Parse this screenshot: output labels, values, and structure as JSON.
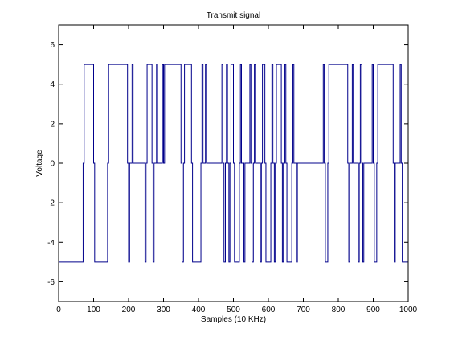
{
  "chart_data": {
    "type": "line",
    "title": "Transmit signal",
    "xlabel": "Samples (10 KHz)",
    "ylabel": "Voltage",
    "xlim": [
      0,
      1000
    ],
    "ylim": [
      -7,
      7
    ],
    "xticks": [
      0,
      100,
      200,
      300,
      400,
      500,
      600,
      700,
      800,
      900,
      1000
    ],
    "yticks": [
      -6,
      -4,
      -2,
      0,
      2,
      4,
      6
    ],
    "grid": false,
    "line_color": "#00008b",
    "series": [
      {
        "x": [
          0,
          70,
          70,
          73,
          73,
          100,
          100,
          103,
          103,
          140,
          140,
          143,
          143,
          197,
          197,
          200,
          200,
          203,
          203,
          210,
          210,
          213,
          213,
          247,
          247,
          250,
          250,
          253,
          253,
          267,
          267,
          270,
          270,
          273,
          273,
          280,
          280,
          283,
          283,
          297,
          297,
          300,
          300,
          303,
          303,
          350,
          350,
          353,
          353,
          357,
          357,
          360,
          360,
          380,
          380,
          383,
          383,
          407,
          407,
          410,
          410,
          413,
          413,
          420,
          420,
          423,
          423,
          467,
          467,
          470,
          470,
          473,
          473,
          477,
          477,
          480,
          480,
          483,
          483,
          487,
          487,
          490,
          490,
          493,
          493,
          500,
          500,
          503,
          503,
          517,
          517,
          520,
          520,
          523,
          523,
          530,
          530,
          533,
          533,
          547,
          547,
          550,
          550,
          553,
          553,
          557,
          557,
          560,
          560,
          563,
          563,
          577,
          577,
          580,
          580,
          583,
          583,
          590,
          590,
          593,
          593,
          607,
          607,
          610,
          610,
          613,
          613,
          617,
          617,
          620,
          620,
          623,
          623,
          637,
          637,
          640,
          640,
          643,
          643,
          647,
          647,
          650,
          650,
          653,
          653,
          667,
          667,
          670,
          670,
          673,
          673,
          680,
          680,
          683,
          683,
          757,
          757,
          760,
          760,
          763,
          763,
          770,
          770,
          773,
          773,
          827,
          827,
          830,
          830,
          833,
          833,
          840,
          840,
          843,
          843,
          857,
          857,
          860,
          860,
          863,
          863,
          867,
          867,
          870,
          870,
          873,
          873,
          897,
          897,
          900,
          900,
          903,
          903,
          910,
          910,
          913,
          913,
          957,
          957,
          960,
          960,
          963,
          963,
          977,
          977,
          980,
          980,
          983,
          983,
          1000
        ],
        "y": [
          -5,
          -5,
          0,
          0,
          5,
          5,
          0,
          0,
          -5,
          -5,
          0,
          0,
          5,
          5,
          0,
          0,
          -5,
          -5,
          0,
          0,
          5,
          5,
          0,
          0,
          -5,
          -5,
          0,
          0,
          5,
          5,
          0,
          0,
          -5,
          -5,
          0,
          0,
          5,
          5,
          0,
          0,
          5,
          5,
          0,
          0,
          5,
          5,
          0,
          0,
          -5,
          -5,
          0,
          0,
          5,
          5,
          0,
          0,
          -5,
          -5,
          0,
          0,
          5,
          5,
          0,
          0,
          5,
          5,
          0,
          0,
          5,
          5,
          0,
          0,
          -5,
          -5,
          0,
          0,
          5,
          5,
          0,
          0,
          -5,
          -5,
          0,
          0,
          5,
          5,
          0,
          0,
          -5,
          -5,
          0,
          0,
          5,
          5,
          0,
          0,
          -5,
          -5,
          0,
          0,
          5,
          5,
          0,
          0,
          -5,
          -5,
          0,
          0,
          5,
          5,
          0,
          0,
          -5,
          -5,
          0,
          0,
          5,
          5,
          0,
          0,
          -5,
          -5,
          0,
          0,
          5,
          5,
          0,
          0,
          -5,
          -5,
          0,
          0,
          5,
          5,
          0,
          0,
          -5,
          -5,
          0,
          0,
          5,
          5,
          0,
          0,
          -5,
          -5,
          0,
          0,
          5,
          5,
          0,
          0,
          -5,
          -5,
          0,
          0,
          5,
          5,
          0,
          0,
          -5,
          -5,
          0,
          0,
          5,
          5,
          0,
          0,
          -5,
          -5,
          0,
          0,
          5,
          5,
          0,
          0,
          -5,
          -5,
          0,
          0,
          5,
          5,
          0,
          0,
          -5,
          -5,
          0,
          0,
          5,
          5,
          0,
          0,
          -5,
          -5,
          0,
          0,
          5,
          5,
          0,
          0,
          -5,
          -5,
          0,
          0,
          5,
          5,
          0,
          0,
          -5,
          -5
        ]
      }
    ]
  }
}
